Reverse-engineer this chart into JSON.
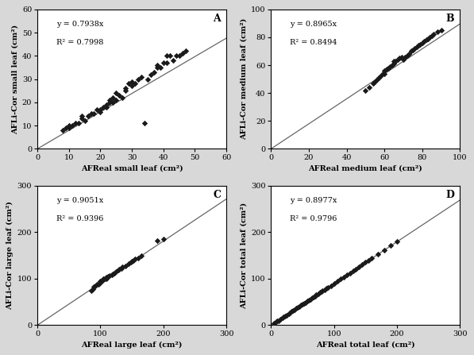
{
  "panels": [
    {
      "label": "A",
      "equation": "y = 0.7938x",
      "r2": "R² = 0.7998",
      "slope": 0.7938,
      "xlabel": "AFReal small leaf (cm²)",
      "ylabel": "AFLi-Cor small leaf (cm²)",
      "xlim": [
        0,
        60
      ],
      "ylim": [
        0,
        60
      ],
      "xticks": [
        0,
        10,
        20,
        30,
        40,
        50,
        60
      ],
      "yticks": [
        0,
        10,
        20,
        30,
        40,
        50,
        60
      ],
      "scatter_x": [
        8,
        9,
        10,
        10,
        11,
        12,
        13,
        14,
        14,
        15,
        16,
        17,
        18,
        19,
        20,
        20,
        21,
        22,
        22,
        23,
        23,
        24,
        24,
        25,
        25,
        26,
        27,
        28,
        28,
        29,
        30,
        30,
        31,
        32,
        33,
        34,
        35,
        36,
        37,
        38,
        38,
        39,
        40,
        41,
        41,
        42,
        43,
        44,
        45,
        46,
        47
      ],
      "scatter_y": [
        8,
        9,
        9,
        10,
        10,
        11,
        11,
        13,
        14,
        12,
        14,
        15,
        15,
        17,
        16,
        17,
        18,
        18,
        19,
        20,
        21,
        22,
        20,
        21,
        24,
        23,
        22,
        25,
        26,
        28,
        27,
        29,
        28,
        30,
        31,
        11,
        30,
        32,
        33,
        35,
        36,
        35,
        37,
        37,
        40,
        40,
        38,
        40,
        40,
        41,
        42
      ]
    },
    {
      "label": "B",
      "equation": "y = 0.8965x",
      "r2": "R² = 0.8494",
      "slope": 0.8965,
      "xlabel": "AFReal medium leaf (cm²)",
      "ylabel": "AFLi-Cor medium leaf (cm²)",
      "xlim": [
        0,
        100
      ],
      "ylim": [
        0,
        100
      ],
      "xticks": [
        0,
        20,
        40,
        60,
        80,
        100
      ],
      "yticks": [
        0,
        20,
        40,
        60,
        80,
        100
      ],
      "scatter_x": [
        50,
        52,
        54,
        55,
        56,
        57,
        58,
        59,
        60,
        60,
        61,
        62,
        63,
        64,
        65,
        65,
        66,
        67,
        68,
        69,
        70,
        71,
        72,
        73,
        74,
        75,
        76,
        77,
        78,
        79,
        80,
        81,
        82,
        83,
        84,
        85,
        86,
        88,
        90
      ],
      "scatter_y": [
        42,
        44,
        47,
        48,
        50,
        51,
        52,
        54,
        54,
        56,
        57,
        58,
        59,
        60,
        61,
        63,
        63,
        64,
        65,
        66,
        64,
        66,
        67,
        68,
        70,
        71,
        72,
        73,
        74,
        75,
        76,
        77,
        78,
        79,
        80,
        81,
        82,
        84,
        85
      ]
    },
    {
      "label": "C",
      "equation": "y = 0.9051x",
      "r2": "R² = 0.9396",
      "slope": 0.9051,
      "xlabel": "AFReal large leaf (cm²)",
      "ylabel": "AFLi-Cor large leaf (cm²)",
      "xlim": [
        0,
        300
      ],
      "ylim": [
        0,
        300
      ],
      "xticks": [
        0,
        100,
        200,
        300
      ],
      "yticks": [
        0,
        100,
        200,
        300
      ],
      "scatter_x": [
        85,
        88,
        90,
        92,
        95,
        97,
        98,
        100,
        100,
        102,
        103,
        105,
        105,
        107,
        108,
        110,
        110,
        112,
        115,
        118,
        120,
        122,
        125,
        128,
        130,
        133,
        135,
        140,
        145,
        148,
        150,
        152,
        155,
        160,
        165,
        190,
        200
      ],
      "scatter_y": [
        75,
        78,
        82,
        85,
        88,
        88,
        90,
        92,
        95,
        95,
        97,
        98,
        100,
        100,
        102,
        100,
        103,
        105,
        107,
        108,
        110,
        112,
        115,
        118,
        120,
        122,
        125,
        128,
        133,
        135,
        138,
        140,
        142,
        145,
        150,
        182,
        185
      ]
    },
    {
      "label": "D",
      "equation": "y = 0.8977x",
      "r2": "R² = 0.9796",
      "slope": 0.8977,
      "xlabel": "AFReal total leaf (cm²)",
      "ylabel": "AFLi-Cor total leaf (cm²)",
      "xlim": [
        0,
        300
      ],
      "ylim": [
        0,
        300
      ],
      "xticks": [
        0,
        100,
        200,
        300
      ],
      "yticks": [
        0,
        100,
        200,
        300
      ],
      "scatter_x": [
        5,
        8,
        10,
        12,
        15,
        18,
        20,
        22,
        25,
        28,
        30,
        32,
        35,
        38,
        40,
        42,
        45,
        48,
        50,
        52,
        55,
        58,
        60,
        62,
        65,
        68,
        70,
        72,
        75,
        78,
        80,
        82,
        85,
        88,
        90,
        95,
        100,
        105,
        110,
        115,
        120,
        125,
        130,
        135,
        140,
        145,
        150,
        155,
        160,
        170,
        180,
        190,
        200
      ],
      "scatter_y": [
        4,
        7,
        9,
        10,
        13,
        16,
        18,
        20,
        22,
        25,
        27,
        29,
        31,
        34,
        36,
        38,
        40,
        43,
        45,
        47,
        49,
        52,
        54,
        56,
        58,
        61,
        63,
        65,
        67,
        70,
        72,
        74,
        76,
        79,
        81,
        85,
        90,
        94,
        99,
        103,
        108,
        112,
        117,
        121,
        126,
        130,
        135,
        139,
        144,
        153,
        162,
        171,
        180
      ]
    }
  ],
  "fig_facecolor": "#d8d8d8",
  "ax_facecolor": "#ffffff",
  "marker_color": "#1a1a1a",
  "line_color": "#666666",
  "font_family": "DejaVu Serif",
  "tick_fontsize": 7,
  "label_fontsize": 7,
  "eq_fontsize": 7,
  "panel_label_fontsize": 9
}
